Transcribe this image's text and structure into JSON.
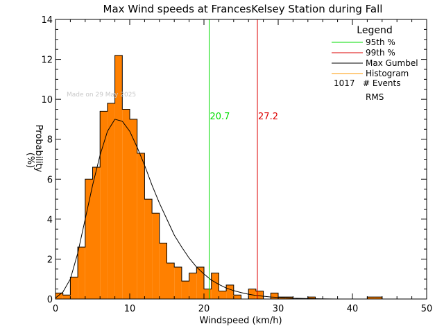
{
  "chart_data": {
    "type": "bar",
    "title": "Max Wind speeds at FrancesKelsey Station during Fall",
    "xlabel": "Windspeed (km/h)",
    "ylabel_top": "Probability",
    "ylabel_bottom": "(%)",
    "xlim": [
      0,
      50
    ],
    "ylim": [
      0,
      14
    ],
    "x_ticks": [
      0,
      10,
      20,
      30,
      40,
      50
    ],
    "y_ticks": [
      0,
      2,
      4,
      6,
      8,
      10,
      12,
      14
    ],
    "bin_width": 1,
    "histogram_bins": [
      {
        "x": 0,
        "value": 0.3
      },
      {
        "x": 1,
        "value": 0.2
      },
      {
        "x": 2,
        "value": 1.1
      },
      {
        "x": 3,
        "value": 2.6
      },
      {
        "x": 4,
        "value": 6.0
      },
      {
        "x": 5,
        "value": 6.6
      },
      {
        "x": 6,
        "value": 9.4
      },
      {
        "x": 7,
        "value": 9.8
      },
      {
        "x": 8,
        "value": 12.2
      },
      {
        "x": 9,
        "value": 9.5
      },
      {
        "x": 10,
        "value": 9.0
      },
      {
        "x": 11,
        "value": 7.3
      },
      {
        "x": 12,
        "value": 5.0
      },
      {
        "x": 13,
        "value": 4.3
      },
      {
        "x": 14,
        "value": 2.8
      },
      {
        "x": 15,
        "value": 1.8
      },
      {
        "x": 16,
        "value": 1.6
      },
      {
        "x": 17,
        "value": 0.9
      },
      {
        "x": 18,
        "value": 1.3
      },
      {
        "x": 19,
        "value": 1.6
      },
      {
        "x": 20,
        "value": 0.5
      },
      {
        "x": 21,
        "value": 1.3
      },
      {
        "x": 22,
        "value": 0.4
      },
      {
        "x": 23,
        "value": 0.7
      },
      {
        "x": 24,
        "value": 0.2
      },
      {
        "x": 25,
        "value": 0.0
      },
      {
        "x": 26,
        "value": 0.5
      },
      {
        "x": 27,
        "value": 0.4
      },
      {
        "x": 28,
        "value": 0.0
      },
      {
        "x": 29,
        "value": 0.3
      },
      {
        "x": 30,
        "value": 0.1
      },
      {
        "x": 31,
        "value": 0.1
      },
      {
        "x": 32,
        "value": 0.0
      },
      {
        "x": 33,
        "value": 0.0
      },
      {
        "x": 34,
        "value": 0.1
      },
      {
        "x": 35,
        "value": 0.0
      },
      {
        "x": 42,
        "value": 0.1
      },
      {
        "x": 43,
        "value": 0.1
      }
    ],
    "gumbel_curve": [
      [
        0,
        0.05
      ],
      [
        1,
        0.35
      ],
      [
        2,
        1.0
      ],
      [
        3,
        2.3
      ],
      [
        4,
        4.0
      ],
      [
        5,
        5.7
      ],
      [
        6,
        7.2
      ],
      [
        7,
        8.4
      ],
      [
        8,
        9.0
      ],
      [
        9,
        8.9
      ],
      [
        10,
        8.4
      ],
      [
        11,
        7.6
      ],
      [
        12,
        6.7
      ],
      [
        13,
        5.7
      ],
      [
        14,
        4.8
      ],
      [
        15,
        4.0
      ],
      [
        16,
        3.2
      ],
      [
        17,
        2.6
      ],
      [
        18,
        2.05
      ],
      [
        19,
        1.6
      ],
      [
        20,
        1.25
      ],
      [
        21,
        0.95
      ],
      [
        22,
        0.73
      ],
      [
        23,
        0.55
      ],
      [
        24,
        0.42
      ],
      [
        25,
        0.32
      ],
      [
        26,
        0.24
      ],
      [
        27,
        0.18
      ],
      [
        28,
        0.14
      ],
      [
        29,
        0.1
      ],
      [
        30,
        0.08
      ],
      [
        32,
        0.04
      ],
      [
        34,
        0.02
      ],
      [
        36,
        0.01
      ],
      [
        38,
        0.0
      ]
    ],
    "percentile_95": {
      "label": "95th %",
      "value": 20.7,
      "value_label": "20.7",
      "color": "#00dd00"
    },
    "percentile_99": {
      "label": "99th %",
      "value": 27.2,
      "value_label": "27.2",
      "color": "#dd0000"
    },
    "colors": {
      "histogram_fill": "#ff8000",
      "histogram_legend": "#ff9900",
      "gumbel": "#000000",
      "axes": "#000000",
      "watermark": "#c8c8c8"
    },
    "legend": {
      "title": "Legend",
      "placement": "top-right",
      "entries": [
        {
          "label": "95th %",
          "color": "#00dd00"
        },
        {
          "label": "99th %",
          "color": "#dd0000"
        },
        {
          "label": "Max Gumbel",
          "color": "#000000"
        },
        {
          "label": "Histogram",
          "color": "#ff9900"
        }
      ],
      "events_count": "1017",
      "events_label": "# Events",
      "rms_label": "RMS"
    },
    "watermark": "Made on 29 May 2025",
    "grid": false
  }
}
